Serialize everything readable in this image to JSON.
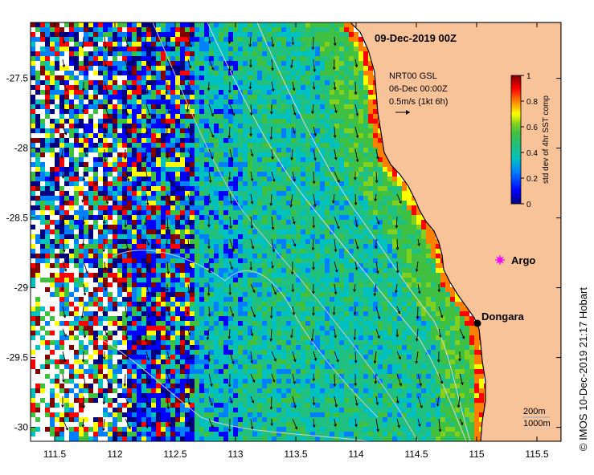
{
  "map": {
    "title": "09-Dec-2019 00Z",
    "credit": "© IMOS 10-Dec-2019 21:17 Hobart",
    "x_ticks": [
      "111.5",
      "112",
      "112.5",
      "113",
      "113.5",
      "114",
      "114.5",
      "115",
      "115.5"
    ],
    "y_ticks": [
      "-27.5",
      "-28",
      "-28.5",
      "-29",
      "-29.5",
      "-30"
    ],
    "land_color": "#f9c39a",
    "current_legend": {
      "line1": "NRT00 GSL",
      "line2": "06-Dec 00:00Z",
      "line3": "0.5m/s (1kt 6h)"
    },
    "places": [
      {
        "name": "Dongara",
        "symbol": "black-dot"
      },
      {
        "name": "Argo",
        "symbol": "magenta-star"
      }
    ],
    "bathymetry_legend": [
      "200m",
      "1000m"
    ],
    "colorbar": {
      "label": "std dev of 4hr SST comp",
      "ticks": [
        "1",
        "0.8",
        "0.6",
        "0.4",
        "0.2",
        "0"
      ],
      "colors": [
        "#00007f",
        "#0000ff",
        "#0080ff",
        "#00c0c0",
        "#20c080",
        "#40c040",
        "#80d020",
        "#ffff00",
        "#ff8000",
        "#ff0000",
        "#800000"
      ]
    }
  },
  "chart_data": {
    "type": "heatmap",
    "title": "09-Dec-2019 00Z",
    "xlabel": "",
    "ylabel": "",
    "xlim": [
      111.3,
      115.7
    ],
    "ylim": [
      -30.1,
      -27.1
    ],
    "x_ticks": [
      111.5,
      112,
      112.5,
      113,
      113.5,
      114,
      114.5,
      115,
      115.5
    ],
    "y_ticks": [
      -27.5,
      -28,
      -28.5,
      -29,
      -29.5,
      -30
    ],
    "colorbar": {
      "label": "std dev of 4hr SST comp",
      "range": [
        0,
        1
      ]
    },
    "markers": [
      {
        "name": "Dongara",
        "lon": 114.93,
        "lat": -29.25
      },
      {
        "name": "Argo",
        "lon": 115.12,
        "lat": -28.83
      }
    ]
  }
}
